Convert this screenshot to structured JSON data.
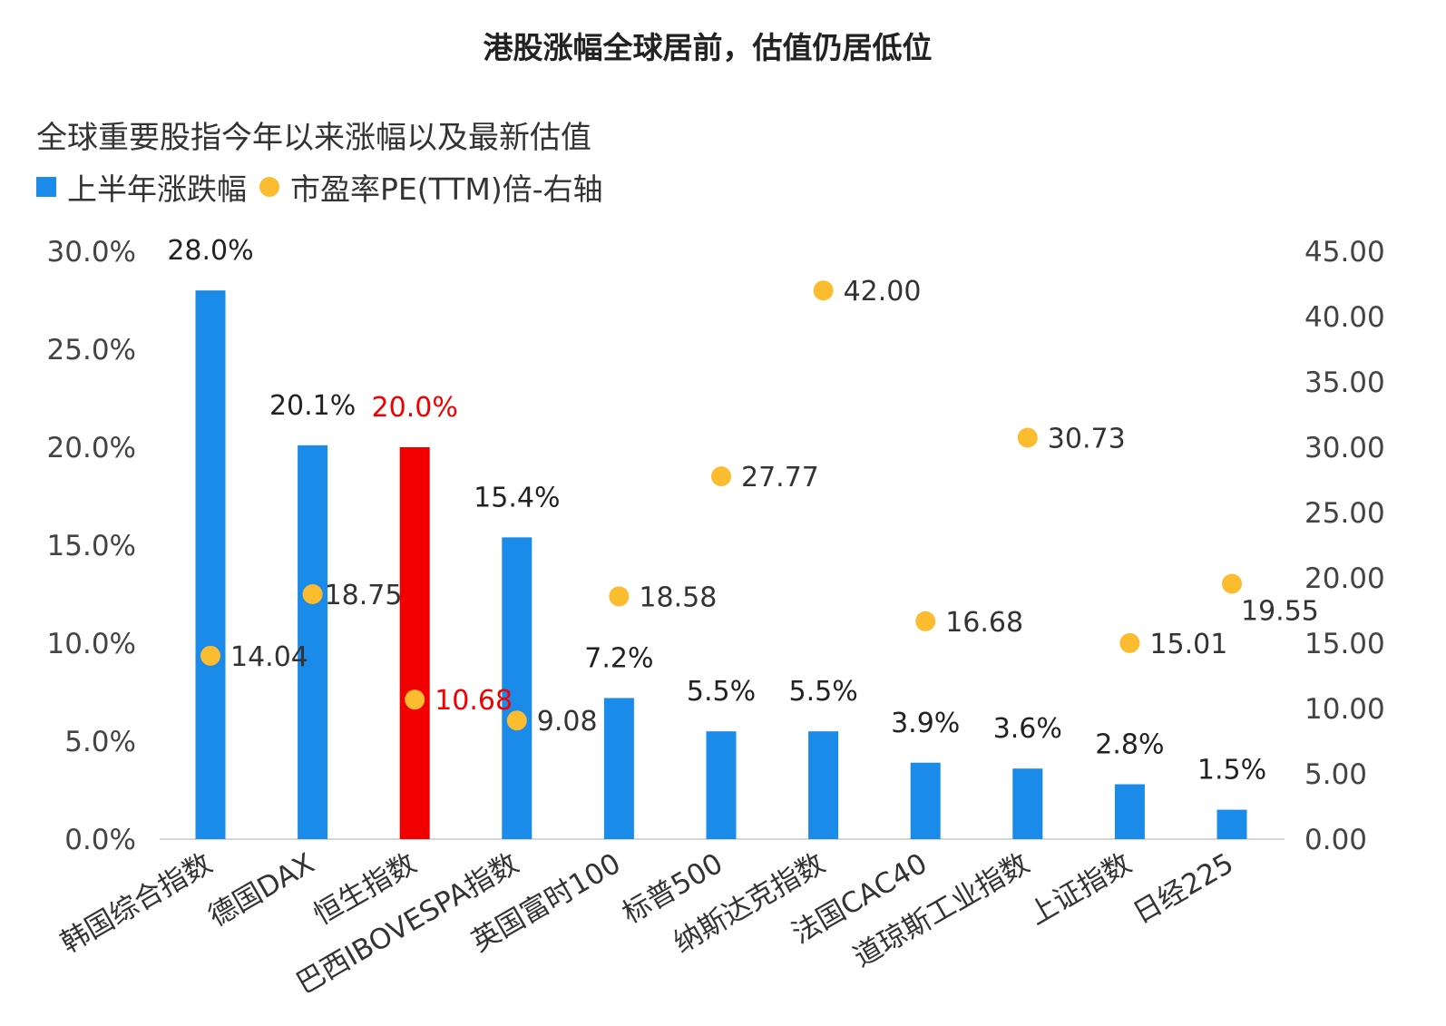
{
  "page_title": "港股涨幅全球居前，估值仍居低位",
  "chart_data": {
    "type": "bar",
    "title": "全球重要股指今年以来涨幅以及最新估值",
    "categories": [
      "韩国综合指数",
      "德国DAX",
      "恒生指数",
      "巴西IBOVESPA指数",
      "英国富时100",
      "标普500",
      "纳斯达克指数",
      "法国CAC40",
      "道琼斯工业指数",
      "上证指数",
      "日经225"
    ],
    "series": [
      {
        "name": "上半年涨跌幅",
        "type": "bar",
        "axis": "left",
        "values": [
          28.0,
          20.1,
          20.0,
          15.4,
          7.2,
          5.5,
          5.5,
          3.9,
          3.6,
          2.8,
          1.5
        ],
        "labels": [
          "28.0%",
          "20.1%",
          "20.0%",
          "15.4%",
          "7.2%",
          "5.5%",
          "5.5%",
          "3.9%",
          "3.6%",
          "2.8%",
          "1.5%"
        ],
        "color": "#1a8be8",
        "highlight_index": 2,
        "highlight_color": "#f20000"
      },
      {
        "name": "市盈率PE(TTM)倍-右轴",
        "type": "scatter",
        "axis": "right",
        "values": [
          14.04,
          18.75,
          10.68,
          9.08,
          18.58,
          27.77,
          42.0,
          16.68,
          30.73,
          15.01,
          19.55
        ],
        "labels": [
          "14.04",
          "18.75",
          "10.68",
          "9.08",
          "18.58",
          "27.77",
          "42.00",
          "16.68",
          "30.73",
          "15.01",
          "19.55"
        ],
        "color": "#fbbc30"
      }
    ],
    "y_left": {
      "lim": [
        0,
        30
      ],
      "ticks": [
        "0.0%",
        "5.0%",
        "10.0%",
        "15.0%",
        "20.0%",
        "25.0%",
        "30.0%"
      ]
    },
    "y_right": {
      "lim": [
        0,
        45
      ],
      "ticks": [
        "0.00",
        "5.00",
        "10.00",
        "15.00",
        "20.00",
        "25.00",
        "30.00",
        "35.00",
        "40.00",
        "45.00"
      ]
    },
    "legend": "top-left",
    "grid": false
  }
}
